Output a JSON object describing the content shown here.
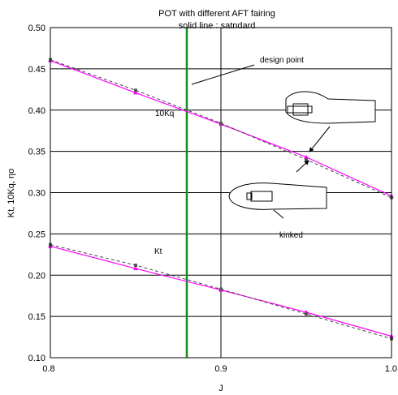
{
  "chart_data": {
    "type": "line",
    "title": "POT with different AFT fairing",
    "subtitle": "solid line : satndard",
    "xlabel": "J",
    "ylabel": "Kt, 10Kq, ηo",
    "xlim": [
      0.8,
      1.0
    ],
    "ylim": [
      0.1,
      0.5
    ],
    "x_ticks": [
      "0.8",
      "0.9",
      "1.0"
    ],
    "y_ticks": [
      "0.10",
      "0.15",
      "0.20",
      "0.25",
      "0.30",
      "0.35",
      "0.40",
      "0.45",
      "0.50"
    ],
    "grid": "horizontal",
    "vertical_lines": [
      {
        "x": 0.88,
        "color": "#1a8a1a",
        "label": "design point"
      },
      {
        "x": 0.9,
        "color": "#000000"
      }
    ],
    "series": [
      {
        "name": "10Kq",
        "style": "solid",
        "color": "#ff00ff",
        "x": [
          0.8,
          0.85,
          0.9,
          0.95,
          1.0
        ],
        "y": [
          0.46,
          0.421,
          0.383,
          0.343,
          0.296
        ]
      },
      {
        "name": "10Kq",
        "style": "dashed",
        "color": "#444444",
        "x": [
          0.8,
          0.85,
          0.9,
          0.95,
          1.0
        ],
        "y": [
          0.461,
          0.424,
          0.384,
          0.34,
          0.294
        ]
      },
      {
        "name": "Kt",
        "style": "solid",
        "color": "#ff00ff",
        "x": [
          0.8,
          0.85,
          0.9,
          0.95,
          1.0
        ],
        "y": [
          0.235,
          0.208,
          0.182,
          0.155,
          0.126
        ]
      },
      {
        "name": "Kt",
        "style": "dashed",
        "color": "#444444",
        "x": [
          0.8,
          0.85,
          0.9,
          0.95,
          1.0
        ],
        "y": [
          0.237,
          0.212,
          0.183,
          0.153,
          0.123
        ]
      }
    ],
    "annotations": {
      "design_point": "design point",
      "kq_label": "10Kq",
      "kt_label": "Kt",
      "kinked": "kinked"
    }
  }
}
